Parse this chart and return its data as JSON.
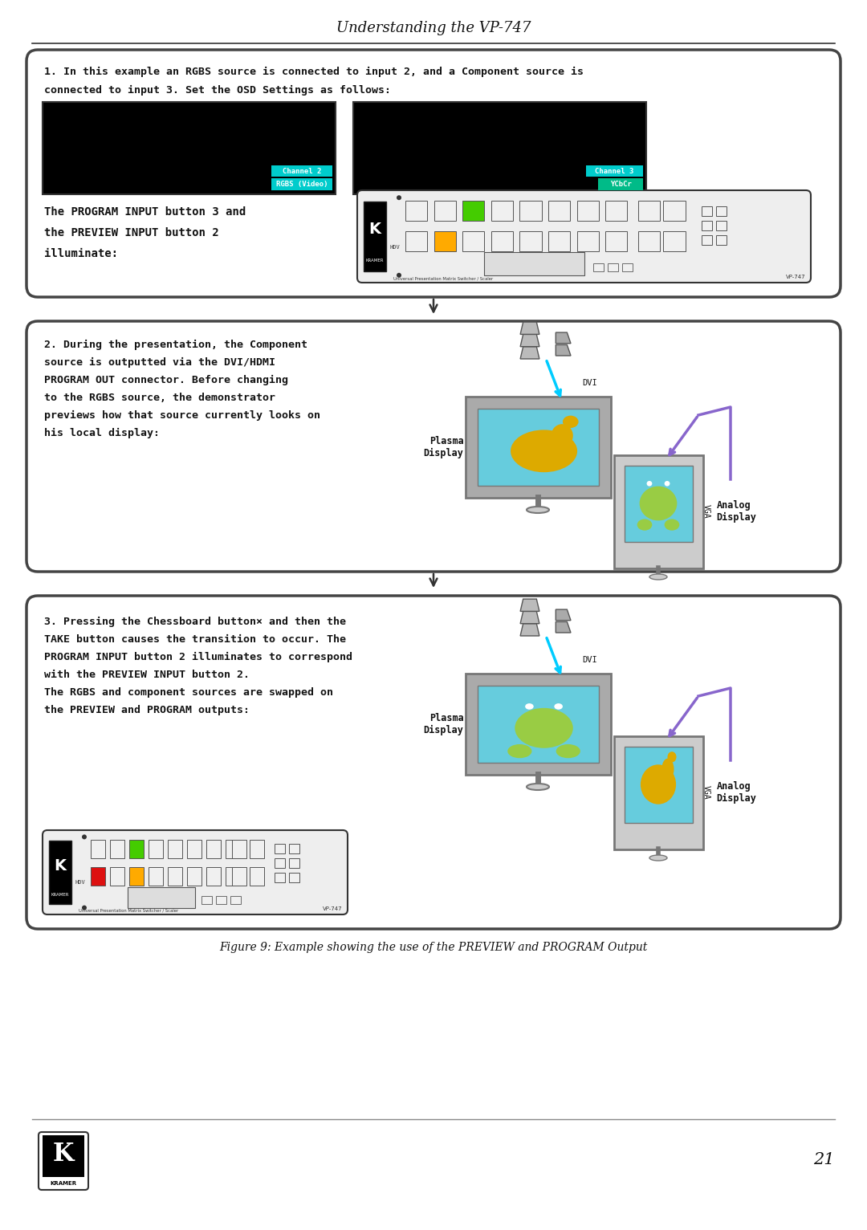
{
  "page_title": "Understanding the VP-747",
  "page_number": "21",
  "bg": "#ffffff",
  "s1_text1": "1. In this example an RGBS source is connected to input 2, and a Component source is",
  "s1_text2": "connected to input 3. Set the OSD Settings as follows:",
  "s1_screen1_lbl1": "Channel 2",
  "s1_screen1_lbl2": "RGBS (Video)",
  "s1_screen2_lbl1": "Channel 3",
  "s1_screen2_lbl2": "YCbCr",
  "s1_body": "The PROGRAM INPUT button 3 and\nthe PREVIEW INPUT button 2\nilluminate:",
  "s2_text": "2. During the presentation, the Component\nsource is outputted via the DVI/HDMI\nPROGRAM OUT connector. Before changing\nto the RGBS source, the demonstrator\npreviews how that source currently looks on\nhis local display:",
  "s2_dvi": "DVI",
  "s2_vga": "VGA",
  "s2_plasma": "Plasma\nDisplay",
  "s2_analog": "Analog\nDisplay",
  "s3_text1": "3. Pressing the Chessboard button",
  "s3_text2": " and then the",
  "s3_text3": "TAKE button causes the transition to occur. The",
  "s3_text4": "PROGRAM INPUT button 2 illuminates to correspond",
  "s3_text5": "with the PREVIEW INPUT button 2.",
  "s3_text6": "The RGBS and component sources are swapped on",
  "s3_text7": "the PREVIEW and PROGRAM outputs:",
  "s3_dvi": "DVI",
  "s3_vga": "VGA",
  "s3_plasma": "Plasma\nDisplay",
  "s3_analog": "Analog\nDisplay",
  "caption": "Figure 9: Example showing the use of the PREVIEW and PROGRAM Output",
  "cyan": "#00cccc",
  "teal": "#00bb88",
  "cable_cyan": "#00ccff",
  "cable_purple": "#8866cc",
  "screen_blue": "#66ccdd",
  "camel_yellow": "#ddaa00",
  "frog_green": "#99cc44",
  "monitor_gray": "#aaaaaa",
  "monitor_dark": "#777777",
  "monitor_light": "#cccccc",
  "panel_bg": "#eeeeee",
  "btn_green": "#44cc00",
  "btn_orange": "#ffaa00",
  "btn_red": "#dd1111"
}
